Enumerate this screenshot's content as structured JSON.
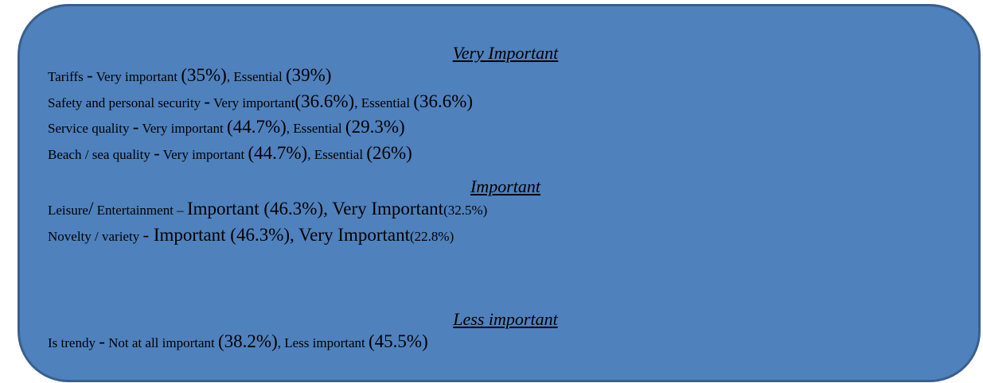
{
  "sections": [
    {
      "heading": "Very Important",
      "lines": [
        [
          "Tariffs ",
          "-",
          " Very important ",
          "(35%)",
          ", Essential ",
          "(39%)"
        ],
        [
          "Safety and personal security ",
          "-",
          " Very important",
          "(36.6%)",
          ", Essential ",
          "(36.6%)"
        ],
        [
          "Service quality ",
          "-",
          " Very important ",
          "(44.7%)",
          ", Essential ",
          "(29.3%)"
        ],
        [
          "Beach / sea quality ",
          "-",
          " Very important ",
          "(44.7%)",
          ", Essential ",
          "(26%)"
        ]
      ]
    },
    {
      "heading": "Important",
      "lines": [
        [
          "Leisure",
          "/",
          " Entertainment – ",
          "Important (46.3%), Very Important",
          "(32.5%)"
        ],
        [
          "Novelty / variety ",
          "- Important (46.3%), Very Important",
          "(22.8%)"
        ]
      ]
    },
    {
      "heading": "Less important",
      "lines": [
        [
          "Is trendy ",
          "-",
          " Not at all important ",
          "(38.2%)",
          ", Less important ",
          "(45.5%)"
        ]
      ]
    }
  ]
}
